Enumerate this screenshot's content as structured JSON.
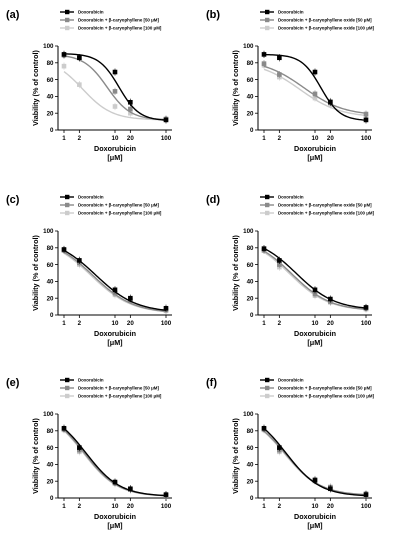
{
  "chart_data": [
    {
      "panel": "(a)",
      "type": "line",
      "xscale": "log",
      "x_ticks": [
        1,
        2,
        10,
        20,
        100
      ],
      "xlim": [
        1,
        100
      ],
      "ylim": [
        0,
        100
      ],
      "y_ticks": [
        0,
        20,
        40,
        60,
        80,
        100
      ],
      "xlabel": "Doxorubicin",
      "xunit": "[μM]",
      "ylabel": "Viability (% of control)",
      "legend": "top-left",
      "series": [
        {
          "name": "Doxorubicin",
          "color": "#000000",
          "x": [
            1,
            2,
            10,
            20,
            100
          ],
          "y": [
            90,
            86,
            69,
            33,
            12
          ],
          "curve": {
            "top": 91,
            "bottom": 11,
            "ec50": 12,
            "hill": 2.2
          }
        },
        {
          "name": "Doxorubicin + β-caryophyllene [50 μM]",
          "color": "#8a8a8a",
          "x": [
            1,
            2,
            10,
            20,
            100
          ],
          "y": [
            89,
            86,
            46,
            25,
            13
          ],
          "curve": {
            "top": 90,
            "bottom": 12,
            "ec50": 7,
            "hill": 1.9
          }
        },
        {
          "name": "Doxorubicin + β-caryophyllene [100 μM]",
          "color": "#cccccc",
          "x": [
            1,
            2,
            10,
            20,
            100
          ],
          "y": [
            76,
            54,
            28,
            20,
            13
          ],
          "curve": {
            "top": 86,
            "bottom": 12,
            "ec50": 2.3,
            "hill": 1.5
          }
        }
      ]
    },
    {
      "panel": "(b)",
      "type": "line",
      "xscale": "log",
      "x_ticks": [
        1,
        2,
        10,
        20,
        100
      ],
      "xlim": [
        1,
        100
      ],
      "ylim": [
        0,
        100
      ],
      "y_ticks": [
        0,
        20,
        40,
        60,
        80,
        100
      ],
      "xlabel": "Doxorubicin",
      "xunit": "[μM]",
      "ylabel": "Viability (% of control)",
      "legend": "top-left",
      "series": [
        {
          "name": "Doxorubicin",
          "color": "#000000",
          "x": [
            1,
            2,
            10,
            20,
            100
          ],
          "y": [
            90,
            86,
            69,
            33,
            12
          ],
          "curve": {
            "top": 90,
            "bottom": 11,
            "ec50": 13,
            "hill": 2.3
          }
        },
        {
          "name": "Doxorubicin + β-caryophyllene oxide [50 μM]",
          "color": "#8a8a8a",
          "x": [
            1,
            2,
            10,
            20,
            100
          ],
          "y": [
            79,
            66,
            43,
            34,
            19
          ],
          "curve": {
            "top": 84,
            "bottom": 17,
            "ec50": 6,
            "hill": 1.1
          }
        },
        {
          "name": "Doxorubicin + β-caryophyllene oxide [100 μM]",
          "color": "#cccccc",
          "x": [
            1,
            2,
            10,
            20,
            100
          ],
          "y": [
            77,
            63,
            38,
            30,
            16
          ],
          "curve": {
            "top": 82,
            "bottom": 15,
            "ec50": 5,
            "hill": 1.1
          }
        }
      ]
    },
    {
      "panel": "(c)",
      "type": "line",
      "xscale": "log",
      "x_ticks": [
        1,
        2,
        10,
        20,
        100
      ],
      "xlim": [
        1,
        100
      ],
      "ylim": [
        0,
        100
      ],
      "y_ticks": [
        0,
        20,
        40,
        60,
        80,
        100
      ],
      "xlabel": "Doxorubicin",
      "xunit": "[μM]",
      "ylabel": "Viability (% of control)",
      "legend": "top-left",
      "series": [
        {
          "name": "Doxorubicin",
          "color": "#000000",
          "x": [
            1,
            2,
            10,
            20,
            100
          ],
          "y": [
            78,
            65,
            30,
            20,
            8
          ],
          "curve": {
            "top": 92,
            "bottom": 3,
            "ec50": 4.2,
            "hill": 1.1
          }
        },
        {
          "name": "Doxorubicin + β-caryophyllene [50 μM]",
          "color": "#8a8a8a",
          "x": [
            1,
            2,
            10,
            20,
            100
          ],
          "y": [
            77,
            62,
            26,
            18,
            6
          ],
          "curve": {
            "top": 92,
            "bottom": 2,
            "ec50": 3.7,
            "hill": 1.1
          }
        },
        {
          "name": "Doxorubicin + β-caryophyllene [100 μM]",
          "color": "#cccccc",
          "x": [
            1,
            2,
            10,
            20,
            100
          ],
          "y": [
            77,
            60,
            24,
            17,
            5
          ],
          "curve": {
            "top": 92,
            "bottom": 2,
            "ec50": 3.4,
            "hill": 1.1
          }
        }
      ]
    },
    {
      "panel": "(d)",
      "type": "line",
      "xscale": "log",
      "x_ticks": [
        1,
        2,
        10,
        20,
        100
      ],
      "xlim": [
        1,
        100
      ],
      "ylim": [
        0,
        100
      ],
      "y_ticks": [
        0,
        20,
        40,
        60,
        80,
        100
      ],
      "xlabel": "Doxorubicin",
      "xunit": "[μM]",
      "ylabel": "Viability (% of control)",
      "legend": "top-left",
      "series": [
        {
          "name": "Doxorubicin",
          "color": "#000000",
          "x": [
            1,
            2,
            10,
            20,
            100
          ],
          "y": [
            79,
            65,
            30,
            19,
            9
          ],
          "curve": {
            "top": 93,
            "bottom": 6,
            "ec50": 4.3,
            "hill": 1.15
          }
        },
        {
          "name": "Doxorubicin + β-caryophyllene oxide [50 μM]",
          "color": "#8a8a8a",
          "x": [
            1,
            2,
            10,
            20,
            100
          ],
          "y": [
            77,
            60,
            25,
            16,
            8
          ],
          "curve": {
            "top": 93,
            "bottom": 5,
            "ec50": 3.5,
            "hill": 1.15
          }
        },
        {
          "name": "Doxorubicin + β-caryophyllene oxide [100 μM]",
          "color": "#cccccc",
          "x": [
            1,
            2,
            10,
            20,
            100
          ],
          "y": [
            77,
            57,
            23,
            15,
            7
          ],
          "curve": {
            "top": 93,
            "bottom": 5,
            "ec50": 3.2,
            "hill": 1.15
          }
        }
      ]
    },
    {
      "panel": "(e)",
      "type": "line",
      "xscale": "log",
      "x_ticks": [
        1,
        2,
        10,
        20,
        100
      ],
      "xlim": [
        1,
        100
      ],
      "ylim": [
        0,
        100
      ],
      "y_ticks": [
        0,
        20,
        40,
        60,
        80,
        100
      ],
      "xlabel": "Doxorubicin",
      "xunit": "[μM]",
      "ylabel": "Viability (% of control)",
      "legend": "top-left",
      "series": [
        {
          "name": "Doxorubicin",
          "color": "#000000",
          "x": [
            1,
            2,
            10,
            20,
            100
          ],
          "y": [
            83,
            60,
            19,
            11,
            4
          ],
          "curve": {
            "top": 105,
            "bottom": 2,
            "ec50": 2.7,
            "hill": 1.3
          }
        },
        {
          "name": "Doxorubicin + β-caryophyllene [50 μM]",
          "color": "#8a8a8a",
          "x": [
            1,
            2,
            10,
            20,
            100
          ],
          "y": [
            82,
            57,
            18,
            10,
            3
          ],
          "curve": {
            "top": 105,
            "bottom": 2,
            "ec50": 2.5,
            "hill": 1.3
          }
        },
        {
          "name": "Doxorubicin + β-caryophyllene [100 μM]",
          "color": "#cccccc",
          "x": [
            1,
            2,
            10,
            20,
            100
          ],
          "y": [
            81,
            55,
            17,
            10,
            3
          ],
          "curve": {
            "top": 105,
            "bottom": 2,
            "ec50": 2.4,
            "hill": 1.3
          }
        }
      ]
    },
    {
      "panel": "(f)",
      "type": "line",
      "xscale": "log",
      "x_ticks": [
        1,
        2,
        10,
        20,
        100
      ],
      "xlim": [
        1,
        100
      ],
      "ylim": [
        0,
        100
      ],
      "y_ticks": [
        0,
        20,
        40,
        60,
        80,
        100
      ],
      "xlabel": "Doxorubicin",
      "xunit": "[μM]",
      "ylabel": "Viability (% of control)",
      "legend": "top-left",
      "series": [
        {
          "name": "Doxorubicin",
          "color": "#000000",
          "x": [
            1,
            2,
            10,
            20,
            100
          ],
          "y": [
            83,
            60,
            21,
            11,
            4
          ],
          "curve": {
            "top": 105,
            "bottom": 2,
            "ec50": 2.7,
            "hill": 1.3
          }
        },
        {
          "name": "Doxorubicin + β-caryophyllene oxide [50 μM]",
          "color": "#8a8a8a",
          "x": [
            1,
            2,
            10,
            20,
            100
          ],
          "y": [
            82,
            57,
            22,
            13,
            5
          ],
          "curve": {
            "top": 103,
            "bottom": 3,
            "ec50": 2.6,
            "hill": 1.25
          }
        },
        {
          "name": "Doxorubicin + β-caryophyllene oxide [100 μM]",
          "color": "#cccccc",
          "x": [
            1,
            2,
            10,
            20,
            100
          ],
          "y": [
            81,
            55,
            20,
            12,
            4
          ],
          "curve": {
            "top": 103,
            "bottom": 3,
            "ec50": 2.5,
            "hill": 1.25
          }
        }
      ]
    }
  ]
}
